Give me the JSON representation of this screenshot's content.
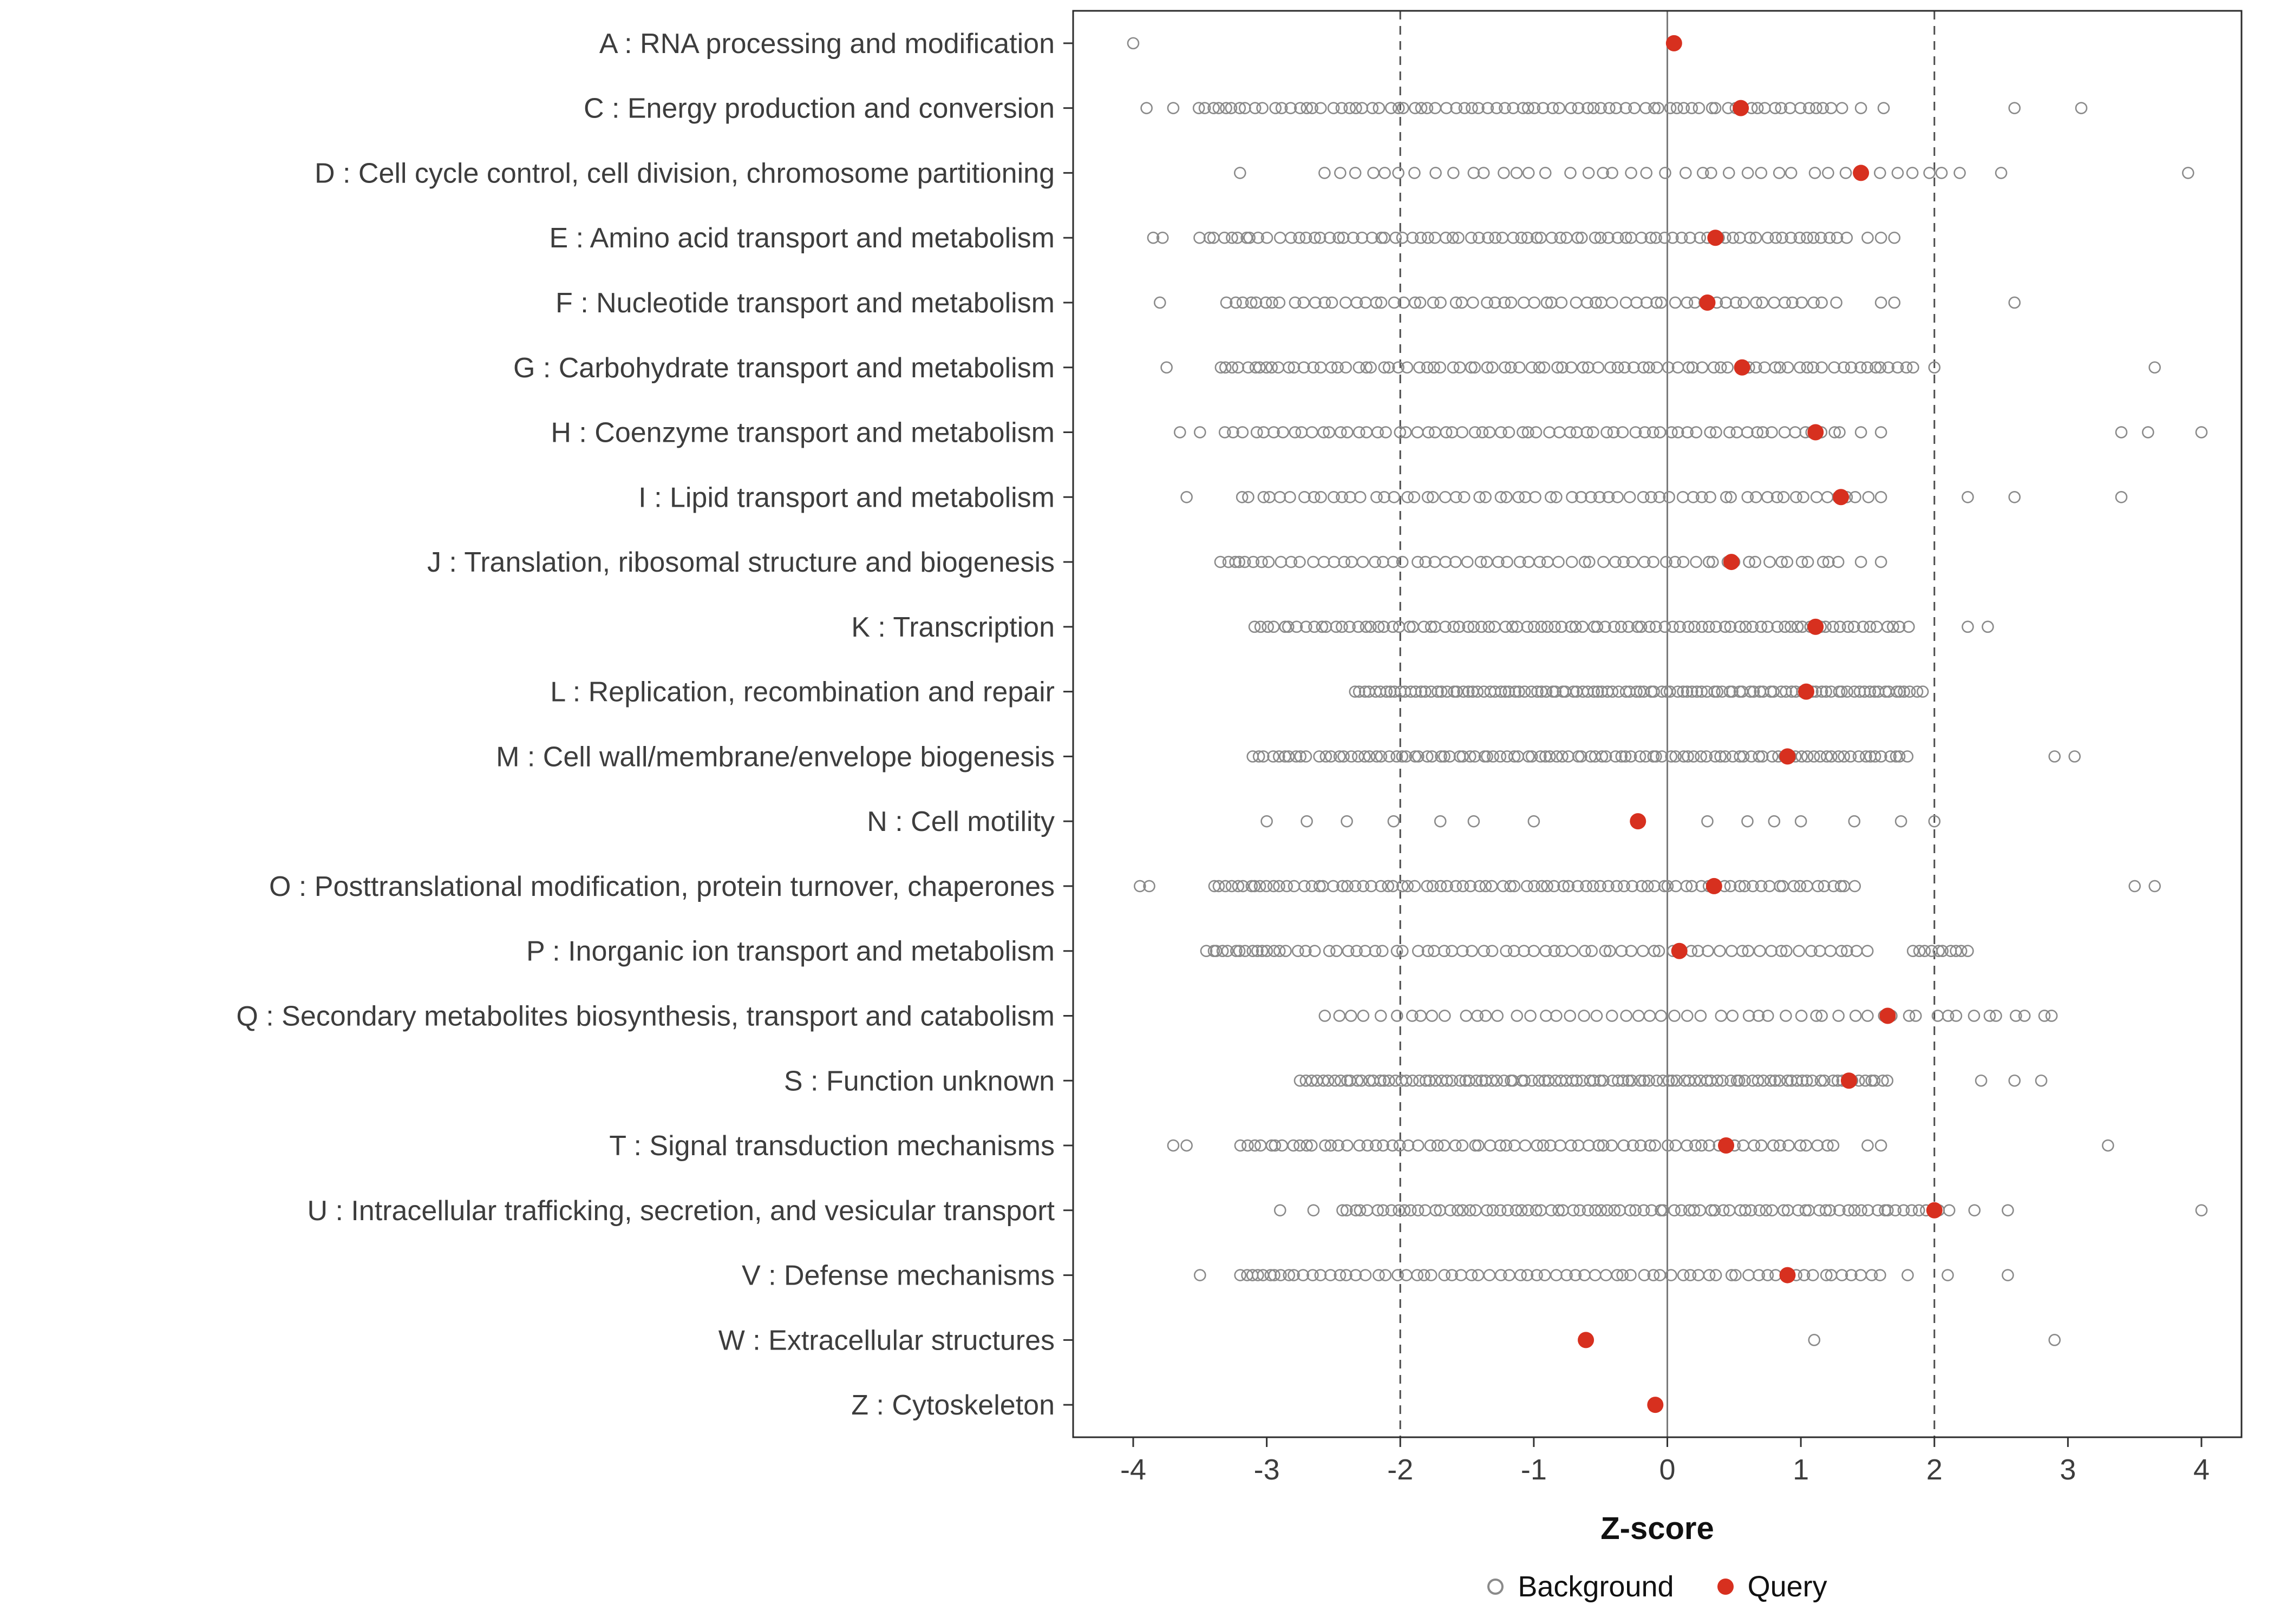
{
  "chart_data": {
    "type": "scatter",
    "title": "",
    "xlabel": "Z-score",
    "ylabel": "",
    "xlim": [
      -4.45,
      4.3
    ],
    "xticks": [
      -4,
      -3,
      -2,
      -1,
      0,
      1,
      2,
      3,
      4
    ],
    "reference_lines": {
      "solid": [
        0
      ],
      "dashed": [
        -2,
        2
      ]
    },
    "grid": "off",
    "legend_position": "bottom",
    "background_color": "#8a8a8a",
    "query_color": "#d7301f",
    "legend": [
      {
        "label": "Background",
        "marker": "open-circle",
        "color": "#8a8a8a"
      },
      {
        "label": "Query",
        "marker": "filled-circle",
        "color": "#d7301f"
      }
    ],
    "categories": [
      "A : RNA processing and modification",
      "C : Energy production and conversion",
      "D : Cell cycle control, cell division, chromosome partitioning",
      "E : Amino acid transport and metabolism",
      "F : Nucleotide transport and metabolism",
      "G : Carbohydrate transport and metabolism",
      "H : Coenzyme transport and metabolism",
      "I : Lipid transport and metabolism",
      "J : Translation, ribosomal structure and biogenesis",
      "K : Transcription",
      "L : Replication, recombination and repair",
      "M : Cell wall/membrane/envelope biogenesis",
      "N : Cell motility",
      "O : Posttranslational modification, protein turnover, chaperones",
      "P : Inorganic ion transport and metabolism",
      "Q : Secondary metabolites biosynthesis, transport and catabolism",
      "S : Function unknown",
      "T : Signal transduction mechanisms",
      "U : Intracellular trafficking, secretion, and vesicular transport",
      "V : Defense mechanisms",
      "W : Extracellular structures",
      "Z : Cytoskeleton"
    ],
    "query_values": [
      0.05,
      0.55,
      1.45,
      0.36,
      0.3,
      0.56,
      1.11,
      1.3,
      0.48,
      1.11,
      1.04,
      0.9,
      -0.22,
      0.35,
      0.09,
      1.65,
      1.36,
      0.44,
      2.0,
      0.9,
      -0.61,
      -0.09
    ],
    "background": [
      {
        "segments": [],
        "points": [
          -4.0
        ]
      },
      {
        "segments": [
          [
            -3.5,
            -3.05,
            10
          ],
          [
            -2.95,
            1.3,
            70
          ]
        ],
        "points": [
          -3.9,
          -3.7,
          1.45,
          1.62,
          2.6,
          3.1
        ]
      },
      {
        "segments": [
          [
            -2.6,
            2.2,
            40
          ]
        ],
        "points": [
          -3.2,
          2.5,
          3.9
        ]
      },
      {
        "segments": [
          [
            -3.5,
            -3.0,
            10
          ],
          [
            -2.9,
            1.35,
            70
          ]
        ],
        "points": [
          -3.85,
          -3.78,
          1.5,
          1.6,
          1.7
        ]
      },
      {
        "segments": [
          [
            -3.3,
            -2.9,
            8
          ],
          [
            -2.8,
            1.25,
            55
          ]
        ],
        "points": [
          -3.8,
          1.6,
          1.7,
          2.6
        ]
      },
      {
        "segments": [
          [
            -3.35,
            -2.9,
            10
          ],
          [
            -2.85,
            1.5,
            68
          ],
          [
            1.55,
            1.85,
            6
          ]
        ],
        "points": [
          -3.75,
          2.0,
          3.65
        ]
      },
      {
        "segments": [
          [
            -3.3,
            1.3,
            66
          ]
        ],
        "points": [
          -3.65,
          -3.5,
          1.45,
          1.6,
          3.4,
          3.6,
          4.0
        ]
      },
      {
        "segments": [
          [
            -3.2,
            1.5,
            62
          ]
        ],
        "points": [
          -3.6,
          1.6,
          2.25,
          2.6,
          3.4
        ]
      },
      {
        "segments": [
          [
            -3.35,
            -3.0,
            8
          ],
          [
            -2.9,
            1.3,
            55
          ]
        ],
        "points": [
          1.45,
          1.6
        ]
      },
      {
        "segments": [
          [
            -3.1,
            1.8,
            90
          ]
        ],
        "points": [
          2.25,
          2.4
        ]
      },
      {
        "segments": [
          [
            -2.35,
            1.9,
            110
          ]
        ],
        "points": []
      },
      {
        "segments": [
          [
            -3.1,
            -2.7,
            10
          ],
          [
            -2.6,
            1.8,
            95
          ]
        ],
        "points": [
          2.9,
          3.05
        ]
      },
      {
        "segments": [],
        "points": [
          -3.0,
          -2.7,
          -2.4,
          -2.05,
          -1.7,
          -1.45,
          -1.0,
          0.3,
          0.6,
          0.8,
          1.0,
          1.4,
          1.75,
          2.0
        ]
      },
      {
        "segments": [
          [
            -3.4,
            -2.9,
            12
          ],
          [
            -2.85,
            1.4,
            75
          ]
        ],
        "points": [
          -3.95,
          -3.88,
          3.5,
          3.65
        ]
      },
      {
        "segments": [
          [
            -3.45,
            -2.9,
            14
          ],
          [
            -2.85,
            1.5,
            60
          ],
          [
            1.85,
            2.25,
            10
          ]
        ],
        "points": []
      },
      {
        "segments": [
          [
            -2.55,
            2.9,
            55
          ]
        ],
        "points": []
      },
      {
        "segments": [
          [
            -2.75,
            1.65,
            105
          ]
        ],
        "points": [
          2.35,
          2.6,
          2.8
        ]
      },
      {
        "segments": [
          [
            -3.2,
            -2.7,
            10
          ],
          [
            -2.65,
            1.25,
            60
          ]
        ],
        "points": [
          -3.7,
          -3.6,
          1.5,
          1.6,
          3.3
        ]
      },
      {
        "segments": [
          [
            -2.45,
            2.1,
            85
          ]
        ],
        "points": [
          -2.9,
          -2.65,
          2.3,
          2.55,
          4.0
        ]
      },
      {
        "segments": [
          [
            -3.2,
            -2.8,
            10
          ],
          [
            -2.75,
            1.6,
            62
          ]
        ],
        "points": [
          -3.5,
          1.8,
          2.1,
          2.55
        ]
      },
      {
        "segments": [],
        "points": [
          1.1,
          2.9
        ]
      },
      {
        "segments": [],
        "points": []
      }
    ]
  }
}
